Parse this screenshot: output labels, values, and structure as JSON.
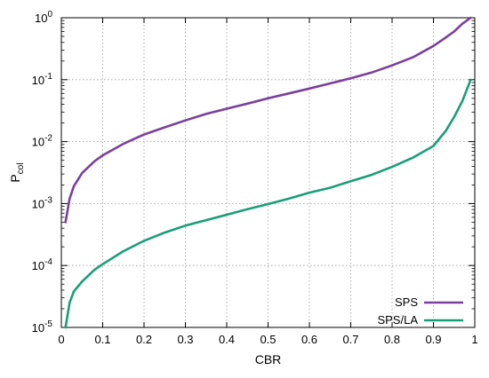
{
  "chart_data": {
    "type": "line",
    "xlabel": "CBR",
    "ylabel": {
      "base": "P",
      "sub": "col"
    },
    "xlim": [
      0,
      1
    ],
    "ylim": [
      1e-05,
      1
    ],
    "yscale": "log",
    "grid": true,
    "legend_position": "bottom-right",
    "x_ticks": [
      "0",
      "0.1",
      "0.2",
      "0.3",
      "0.4",
      "0.5",
      "0.6",
      "0.7",
      "0.8",
      "0.9",
      "1"
    ],
    "y_ticks": [
      {
        "value": 1e-05,
        "base": "10",
        "exp": "-5"
      },
      {
        "value": 0.0001,
        "base": "10",
        "exp": "-4"
      },
      {
        "value": 0.001,
        "base": "10",
        "exp": "-3"
      },
      {
        "value": 0.01,
        "base": "10",
        "exp": "-2"
      },
      {
        "value": 0.1,
        "base": "10",
        "exp": "-1"
      },
      {
        "value": 1,
        "base": "10",
        "exp": "0"
      }
    ],
    "series": [
      {
        "name": "SPS",
        "color": "#7a3f9e",
        "x": [
          0.01,
          0.02,
          0.03,
          0.05,
          0.08,
          0.1,
          0.15,
          0.2,
          0.25,
          0.3,
          0.35,
          0.4,
          0.45,
          0.5,
          0.55,
          0.6,
          0.65,
          0.7,
          0.75,
          0.8,
          0.85,
          0.9,
          0.93,
          0.95,
          0.97,
          0.99
        ],
        "y": [
          0.0005,
          0.0012,
          0.0019,
          0.0031,
          0.0048,
          0.006,
          0.0092,
          0.013,
          0.017,
          0.022,
          0.028,
          0.034,
          0.041,
          0.05,
          0.06,
          0.072,
          0.087,
          0.105,
          0.13,
          0.17,
          0.23,
          0.35,
          0.48,
          0.6,
          0.8,
          1.0
        ]
      },
      {
        "name": "SPS/LA",
        "color": "#1a9e77",
        "x": [
          0.01,
          0.02,
          0.03,
          0.05,
          0.08,
          0.1,
          0.15,
          0.2,
          0.25,
          0.3,
          0.35,
          0.4,
          0.45,
          0.5,
          0.55,
          0.6,
          0.65,
          0.7,
          0.75,
          0.8,
          0.85,
          0.9,
          0.93,
          0.95,
          0.97,
          0.99
        ],
        "y": [
          1e-05,
          2.5e-05,
          3.8e-05,
          5.5e-05,
          8.5e-05,
          0.000105,
          0.00017,
          0.00025,
          0.00034,
          0.00044,
          0.00054,
          0.00066,
          0.00081,
          0.00098,
          0.0012,
          0.0015,
          0.0018,
          0.0023,
          0.0029,
          0.0039,
          0.0055,
          0.0085,
          0.015,
          0.025,
          0.045,
          0.1
        ]
      }
    ]
  }
}
